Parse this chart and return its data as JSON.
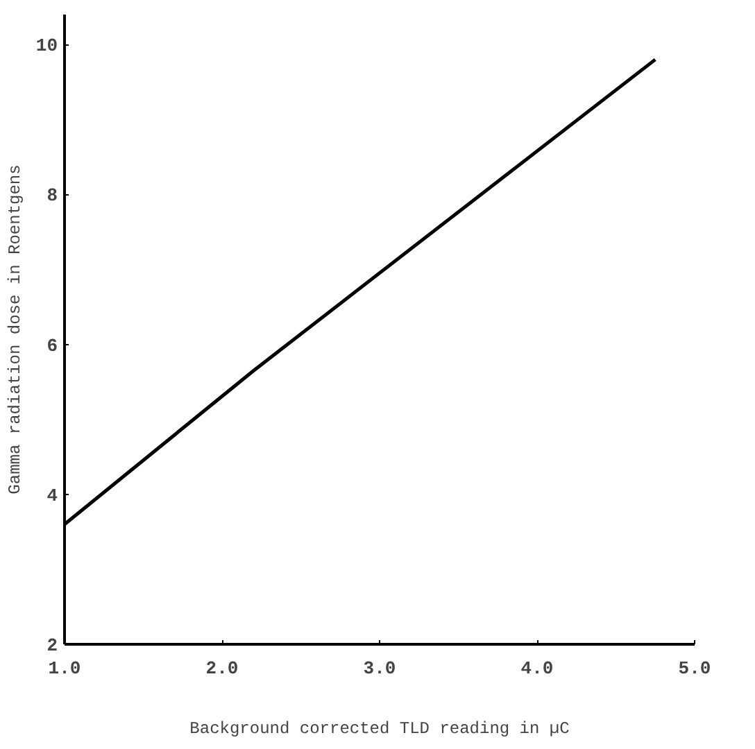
{
  "chart_data": {
    "type": "line",
    "xlabel": "Background corrected TLD reading in µC",
    "ylabel": "Gamma radiation dose in Roentgens",
    "x": [
      1.0,
      2.2,
      4.75
    ],
    "series": [
      {
        "color": "#000000",
        "values": [
          3.6,
          5.65,
          9.8
        ]
      }
    ],
    "xlim": [
      1.0,
      5.0
    ],
    "ylim": [
      2,
      10.4
    ],
    "xticks": [
      {
        "value": 1,
        "label": "1.0"
      },
      {
        "value": 2,
        "label": "2.0"
      },
      {
        "value": 3,
        "label": "3.0"
      },
      {
        "value": 4,
        "label": "4.0"
      },
      {
        "value": 5,
        "label": "5.0"
      }
    ],
    "yticks": [
      2,
      4,
      6,
      8,
      10
    ],
    "grid": false,
    "marker": "none",
    "line_style": "solid"
  }
}
